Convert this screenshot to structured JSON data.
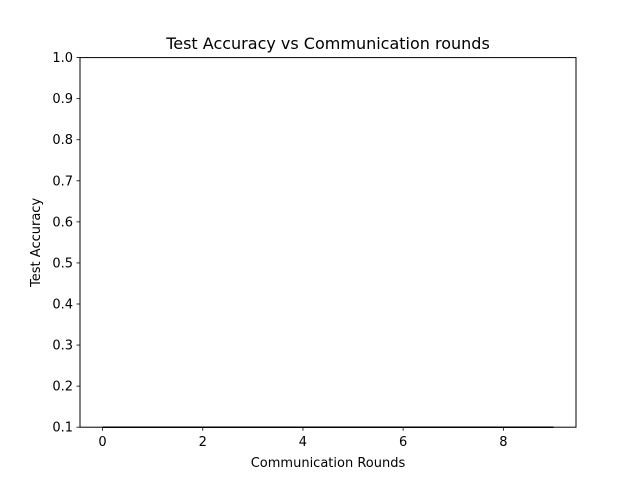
{
  "chart_data": {
    "type": "line",
    "title": "Test Accuracy vs Communication rounds",
    "xlabel": "Communication Rounds",
    "ylabel": "Test Accuracy",
    "x": [
      0,
      1,
      2,
      3,
      4,
      5,
      6,
      7,
      8,
      9
    ],
    "series": [
      {
        "values": [
          0.1,
          0.1,
          0.1,
          0.1,
          0.1,
          0.1,
          0.1,
          0.1,
          0.1,
          0.1
        ]
      }
    ],
    "xlim": [
      -0.45,
      9.45
    ],
    "ylim": [
      0.1,
      1.0
    ],
    "xticks": [
      "0",
      "2",
      "4",
      "6",
      "8"
    ],
    "yticks": [
      "0.1",
      "0.2",
      "0.3",
      "0.4",
      "0.5",
      "0.6",
      "0.7",
      "0.8",
      "0.9",
      "1.0"
    ],
    "grid": false,
    "colors": {
      "line": "#000000",
      "axes": "#000000",
      "background": "#ffffff"
    }
  }
}
